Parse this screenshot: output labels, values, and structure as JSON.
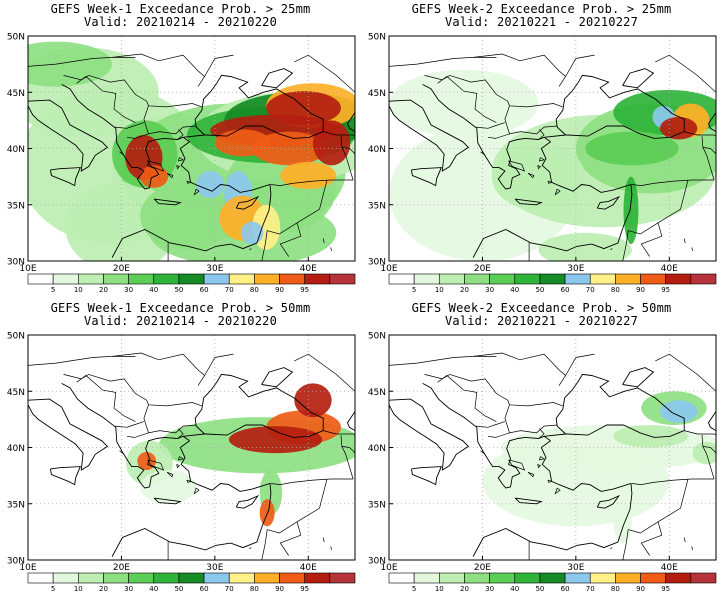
{
  "panels": [
    {
      "title": "GEFS Week-1 Exceedance Prob. > 25mm",
      "valid": "Valid: 20210214 - 20210220"
    },
    {
      "title": "GEFS Week-2 Exceedance Prob. > 25mm",
      "valid": "Valid: 20210221 - 20210227"
    },
    {
      "title": "GEFS Week-1 Exceedance Prob. > 50mm",
      "valid": "Valid: 20210214 - 20210220"
    },
    {
      "title": "GEFS Week-2 Exceedance Prob. > 50mm",
      "valid": "Valid: 20210221 - 20210227"
    }
  ],
  "axes": {
    "lat_labels": [
      "50N",
      "45N",
      "40N",
      "35N",
      "30N"
    ],
    "lon_labels": [
      "10E",
      "20E",
      "30E",
      "40E"
    ]
  },
  "colorbar": {
    "labels": [
      "5",
      "10",
      "20",
      "30",
      "40",
      "50",
      "60",
      "70",
      "80",
      "90",
      "95"
    ],
    "colors": [
      "#ffffff",
      "#e4f8e0",
      "#bdeeb2",
      "#8edf82",
      "#5ccd55",
      "#2fb33a",
      "#168a24",
      "#8cc8ee",
      "#fff088",
      "#ffb027",
      "#f05c17",
      "#b41e10",
      "#b5333a"
    ]
  },
  "colors": {
    "coast": "#000000",
    "grid": "#aaaaaa"
  }
}
